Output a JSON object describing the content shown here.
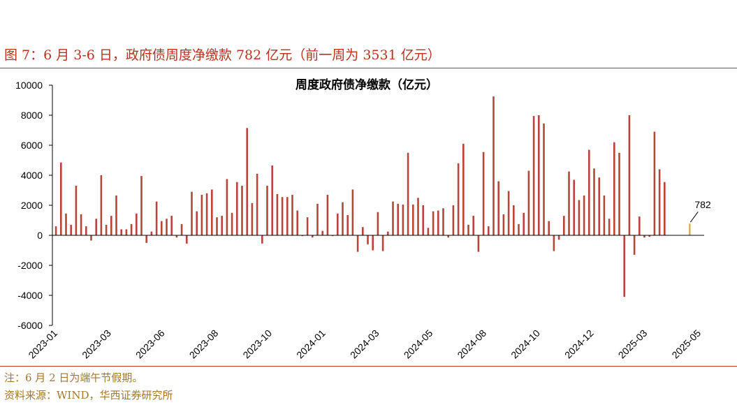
{
  "figure": {
    "title": "图 7：6 月 3-6 日，政府债周度净缴款 782 亿元（前一周为 3531 亿元）",
    "note": "注：6 月 2 日为端午节假期。",
    "source": "资料来源：WIND，华西证券研究所"
  },
  "chart_data": {
    "type": "bar",
    "title": "周度政府债净缴款（亿元）",
    "ylim": [
      -6000,
      10000
    ],
    "yticks": [
      10000,
      8000,
      6000,
      4000,
      2000,
      0,
      -2000,
      -4000,
      -6000
    ],
    "xlim": [
      "2023-01-01",
      "2025-06-30"
    ],
    "xtick_labels": [
      "2023-01",
      "2023-03",
      "2023-06",
      "2023-08",
      "2023-10",
      "2024-01",
      "2024-03",
      "2024-05",
      "2024-08",
      "2024-10",
      "2024-12",
      "2025-03",
      "2025-05"
    ],
    "series": [
      {
        "color": "#b5473a",
        "points": [
          {
            "x": "2023-01-06",
            "y": 600
          },
          {
            "x": "2023-01-13",
            "y": 4850
          },
          {
            "x": "2023-01-20",
            "y": 1450
          },
          {
            "x": "2023-01-27",
            "y": 700
          },
          {
            "x": "2023-02-03",
            "y": 3300
          },
          {
            "x": "2023-02-10",
            "y": 1400
          },
          {
            "x": "2023-02-17",
            "y": 600
          },
          {
            "x": "2023-02-24",
            "y": -350
          },
          {
            "x": "2023-03-03",
            "y": 1100
          },
          {
            "x": "2023-03-10",
            "y": 4000
          },
          {
            "x": "2023-03-17",
            "y": 700
          },
          {
            "x": "2023-03-24",
            "y": 1300
          },
          {
            "x": "2023-03-31",
            "y": 2650
          },
          {
            "x": "2023-04-07",
            "y": 400
          },
          {
            "x": "2023-04-14",
            "y": 400
          },
          {
            "x": "2023-04-21",
            "y": 750
          },
          {
            "x": "2023-04-28",
            "y": 1450
          },
          {
            "x": "2023-05-05",
            "y": 3950
          },
          {
            "x": "2023-05-12",
            "y": -500
          },
          {
            "x": "2023-05-19",
            "y": 250
          },
          {
            "x": "2023-05-26",
            "y": 2250
          },
          {
            "x": "2023-06-02",
            "y": 950
          },
          {
            "x": "2023-06-09",
            "y": 1100
          },
          {
            "x": "2023-06-16",
            "y": 1300
          },
          {
            "x": "2023-06-23",
            "y": -150
          },
          {
            "x": "2023-06-30",
            "y": 750
          },
          {
            "x": "2023-07-07",
            "y": -550
          },
          {
            "x": "2023-07-14",
            "y": 2900
          },
          {
            "x": "2023-07-21",
            "y": 1600
          },
          {
            "x": "2023-07-28",
            "y": 2700
          },
          {
            "x": "2023-08-04",
            "y": 2800
          },
          {
            "x": "2023-08-11",
            "y": 3050
          },
          {
            "x": "2023-08-18",
            "y": 1200
          },
          {
            "x": "2023-08-25",
            "y": 1300
          },
          {
            "x": "2023-09-01",
            "y": 3750
          },
          {
            "x": "2023-09-08",
            "y": 1500
          },
          {
            "x": "2023-09-15",
            "y": 3550
          },
          {
            "x": "2023-09-22",
            "y": 3300
          },
          {
            "x": "2023-09-29",
            "y": 7150
          },
          {
            "x": "2023-10-06",
            "y": 2150
          },
          {
            "x": "2023-10-13",
            "y": 4100
          },
          {
            "x": "2023-10-20",
            "y": -550
          },
          {
            "x": "2023-10-27",
            "y": 3300
          },
          {
            "x": "2023-11-03",
            "y": 4650
          },
          {
            "x": "2023-11-10",
            "y": 2750
          },
          {
            "x": "2023-11-17",
            "y": 2550
          },
          {
            "x": "2023-11-24",
            "y": 2550
          },
          {
            "x": "2023-12-01",
            "y": 2700
          },
          {
            "x": "2023-12-08",
            "y": 1650
          },
          {
            "x": "2023-12-15",
            "y": -50
          },
          {
            "x": "2023-12-22",
            "y": 1200
          },
          {
            "x": "2023-12-29",
            "y": -150
          },
          {
            "x": "2024-01-05",
            "y": 2100
          },
          {
            "x": "2024-01-12",
            "y": 300
          },
          {
            "x": "2024-01-19",
            "y": 2700
          },
          {
            "x": "2024-01-26",
            "y": -50
          },
          {
            "x": "2024-02-02",
            "y": 1450
          },
          {
            "x": "2024-02-09",
            "y": 2200
          },
          {
            "x": "2024-02-16",
            "y": 1350
          },
          {
            "x": "2024-02-23",
            "y": 3050
          },
          {
            "x": "2024-03-01",
            "y": -1100
          },
          {
            "x": "2024-03-08",
            "y": 550
          },
          {
            "x": "2024-03-15",
            "y": -600
          },
          {
            "x": "2024-03-22",
            "y": -1000
          },
          {
            "x": "2024-03-29",
            "y": 1550
          },
          {
            "x": "2024-04-05",
            "y": -1050
          },
          {
            "x": "2024-04-12",
            "y": 250
          },
          {
            "x": "2024-04-19",
            "y": 2250
          },
          {
            "x": "2024-04-26",
            "y": 2100
          },
          {
            "x": "2024-05-03",
            "y": 2050
          },
          {
            "x": "2024-05-10",
            "y": 5500
          },
          {
            "x": "2024-05-17",
            "y": 2050
          },
          {
            "x": "2024-05-24",
            "y": 2500
          },
          {
            "x": "2024-05-31",
            "y": 2000
          },
          {
            "x": "2024-06-07",
            "y": 500
          },
          {
            "x": "2024-06-14",
            "y": 1600
          },
          {
            "x": "2024-06-21",
            "y": 1650
          },
          {
            "x": "2024-06-28",
            "y": 1800
          },
          {
            "x": "2024-07-05",
            "y": -150
          },
          {
            "x": "2024-07-12",
            "y": 2000
          },
          {
            "x": "2024-07-19",
            "y": 4800
          },
          {
            "x": "2024-07-26",
            "y": 6100
          },
          {
            "x": "2024-08-02",
            "y": 700
          },
          {
            "x": "2024-08-09",
            "y": 1300
          },
          {
            "x": "2024-08-16",
            "y": -1100
          },
          {
            "x": "2024-08-23",
            "y": 5550
          },
          {
            "x": "2024-08-30",
            "y": 600
          },
          {
            "x": "2024-09-06",
            "y": 9250
          },
          {
            "x": "2024-09-13",
            "y": 3600
          },
          {
            "x": "2024-09-20",
            "y": 1400
          },
          {
            "x": "2024-09-27",
            "y": 2950
          },
          {
            "x": "2024-10-04",
            "y": 2000
          },
          {
            "x": "2024-10-11",
            "y": 750
          },
          {
            "x": "2024-10-18",
            "y": 1500
          },
          {
            "x": "2024-10-25",
            "y": 4300
          },
          {
            "x": "2024-11-01",
            "y": 7950
          },
          {
            "x": "2024-11-08",
            "y": 8000
          },
          {
            "x": "2024-11-15",
            "y": 7450
          },
          {
            "x": "2024-11-22",
            "y": 950
          },
          {
            "x": "2024-11-29",
            "y": -1050
          },
          {
            "x": "2024-12-06",
            "y": -300
          },
          {
            "x": "2024-12-13",
            "y": 1300
          },
          {
            "x": "2024-12-20",
            "y": 4250
          },
          {
            "x": "2024-12-27",
            "y": 3700
          },
          {
            "x": "2025-01-03",
            "y": 2350
          },
          {
            "x": "2025-01-10",
            "y": 2650
          },
          {
            "x": "2025-01-17",
            "y": 5700
          },
          {
            "x": "2025-01-24",
            "y": 4450
          },
          {
            "x": "2025-01-31",
            "y": 3850
          },
          {
            "x": "2025-02-07",
            "y": 2650
          },
          {
            "x": "2025-02-14",
            "y": 1100
          },
          {
            "x": "2025-02-21",
            "y": 6200
          },
          {
            "x": "2025-02-28",
            "y": 5500
          },
          {
            "x": "2025-03-07",
            "y": -4100
          },
          {
            "x": "2025-03-14",
            "y": 8000
          },
          {
            "x": "2025-03-21",
            "y": -1300
          },
          {
            "x": "2025-03-28",
            "y": 1250
          },
          {
            "x": "2025-04-04",
            "y": -150
          },
          {
            "x": "2025-04-11",
            "y": -100
          },
          {
            "x": "2025-04-18",
            "y": 6900
          },
          {
            "x": "2025-04-25",
            "y": 4400
          },
          {
            "x": "2025-05-02",
            "y": 3550
          }
        ]
      },
      {
        "color": "#d8b070",
        "points": [
          {
            "x": "2025-06-06",
            "y": 782
          }
        ]
      }
    ],
    "annotations": [
      {
        "text": "782",
        "x": "2025-06-06",
        "y": 782
      }
    ]
  }
}
